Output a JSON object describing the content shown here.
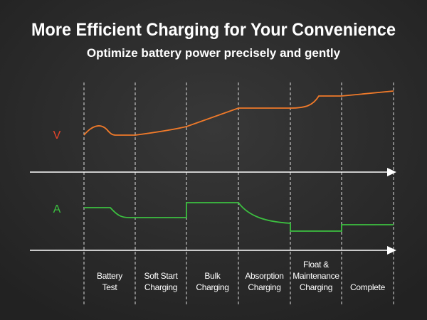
{
  "header": {
    "title": "More Efficient Charging for Your Convenience",
    "subtitle": "Optimize battery power precisely and gently"
  },
  "axes": {
    "voltage": "V",
    "current": "A"
  },
  "stages": [
    {
      "lines": [
        "Battery",
        "Test"
      ]
    },
    {
      "lines": [
        "Soft Start",
        "Charging"
      ]
    },
    {
      "lines": [
        "Bulk",
        "Charging"
      ]
    },
    {
      "lines": [
        "Absorption",
        "Charging"
      ]
    },
    {
      "lines": [
        "Float &",
        "Maintenance",
        "Charging"
      ]
    },
    {
      "lines": [
        "Complete"
      ]
    }
  ]
}
